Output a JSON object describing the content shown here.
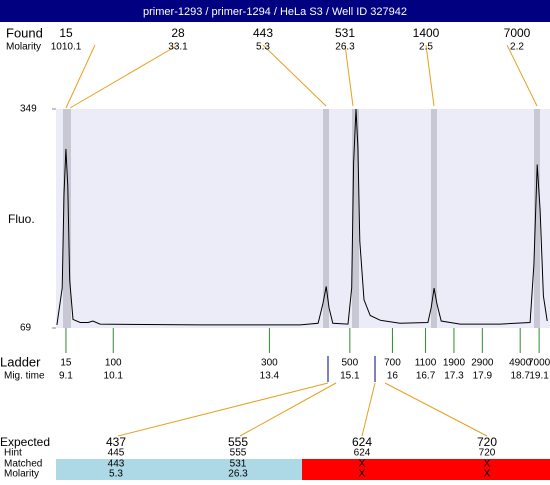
{
  "header": {
    "title": "primer-1293 / primer-1294 / HeLa S3 / Well ID 327942"
  },
  "found": {
    "label": "Found",
    "sub_label": "Molarity",
    "sizes": [
      15,
      28,
      443,
      531,
      1400,
      7000
    ],
    "molarity": [
      1010.1,
      33.1,
      5.3,
      26.3,
      2.5,
      2.2
    ]
  },
  "chart_data": {
    "type": "line",
    "y_label": "Fluo.",
    "color": "#000000",
    "x": [
      8.91,
      9.02,
      9.06,
      9.1,
      9.14,
      9.18,
      9.25,
      9.4,
      9.57,
      9.67,
      9.82,
      11.93,
      14.05,
      14.43,
      14.53,
      14.6,
      14.66,
      14.74,
      15.06,
      15.14,
      15.18,
      15.23,
      15.27,
      15.31,
      15.4,
      15.53,
      15.74,
      16.16,
      16.75,
      16.82,
      16.88,
      16.94,
      17.03,
      17.43,
      18.28,
      18.91,
      18.99,
      19.06,
      19.12,
      19.19,
      19.27
    ],
    "values": [
      73,
      120,
      240,
      298,
      250,
      130,
      80,
      76,
      76,
      78,
      74,
      73,
      73,
      75,
      100,
      122,
      95,
      75,
      74,
      120,
      280,
      349,
      300,
      180,
      105,
      85,
      79,
      75,
      76,
      95,
      120,
      100,
      78,
      74,
      74,
      76,
      150,
      278,
      220,
      110,
      78
    ],
    "xlim": [
      8.89,
      19.33
    ],
    "ylim": [
      69,
      349
    ],
    "yticks": [
      69,
      349
    ]
  },
  "ladder": {
    "label": "Ladder",
    "sub_label": "Mig. time",
    "sizes": [
      15,
      100,
      300,
      500,
      700,
      1100,
      1900,
      2900,
      4900,
      7000
    ],
    "mig_times": [
      9.1,
      10.1,
      13.4,
      15.1,
      16,
      16.7,
      17.3,
      17.9,
      18.7,
      19.1
    ]
  },
  "expected": {
    "row_labels": [
      "Expected",
      "Hint",
      "Matched",
      "Molarity"
    ],
    "columns": [
      {
        "expected": 437,
        "hint": 445,
        "matched": 443,
        "molarity": 5.3
      },
      {
        "expected": 555,
        "hint": 555,
        "matched": 531,
        "molarity": 26.3
      },
      {
        "expected": 624,
        "hint": 624,
        "matched": "X",
        "molarity": "X"
      },
      {
        "expected": 720,
        "hint": 720,
        "matched": "X",
        "molarity": "X"
      }
    ]
  }
}
